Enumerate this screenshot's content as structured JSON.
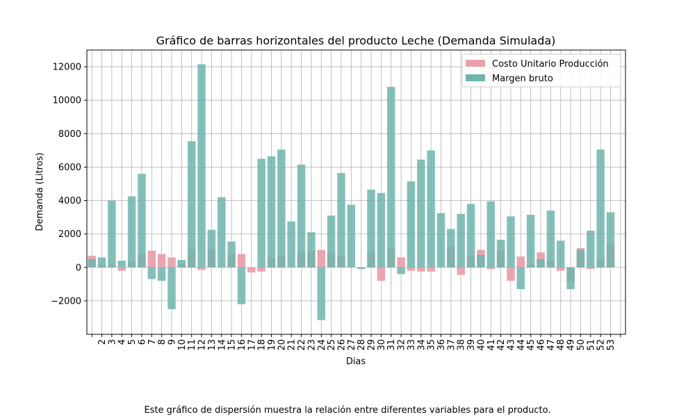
{
  "caption": "Este gráfico de dispersión muestra la relación entre diferentes variables para el producto.",
  "chart_data": {
    "type": "bar",
    "title": "Gráfico de barras horizontales del producto Leche (Demanda Simulada)",
    "xlabel": "Dias",
    "ylabel": "Demanda (Litros)",
    "ylim": [
      -4000,
      13000
    ],
    "yticks": [
      -2000,
      0,
      2000,
      4000,
      6000,
      8000,
      10000,
      12000
    ],
    "ytick_labels": [
      "−2000",
      "0",
      "2000",
      "4000",
      "6000",
      "8000",
      "10000",
      "12000"
    ],
    "grid": true,
    "legend_position": "top-right",
    "categories": [
      "",
      "2",
      "3",
      "4",
      "5",
      "6",
      "7",
      "8",
      "9",
      "10",
      "11",
      "12",
      "13",
      "14",
      "15",
      "16",
      "17",
      "18",
      "19",
      "20",
      "21",
      "22",
      "23",
      "24",
      "25",
      "26",
      "27",
      "28",
      "29",
      "30",
      "31",
      "32",
      "33",
      "34",
      "35",
      "36",
      "37",
      "38",
      "39",
      "40",
      "41",
      "42",
      "43",
      "44",
      "45",
      "46",
      "47",
      "48",
      "49",
      "50",
      "51",
      "52",
      "53",
      ""
    ],
    "series": [
      {
        "name": "Costo Unitario Producción",
        "color": "#e8a1ac",
        "values": [
          700,
          150,
          150,
          -200,
          350,
          800,
          1000,
          800,
          600,
          200,
          1100,
          -150,
          1100,
          0,
          800,
          800,
          -300,
          -250,
          550,
          650,
          0,
          950,
          1000,
          1050,
          900,
          700,
          0,
          0,
          900,
          -800,
          1150,
          600,
          -200,
          -250,
          -250,
          0,
          1250,
          -450,
          700,
          1050,
          -100,
          1000,
          -800,
          650,
          150,
          900,
          400,
          -200,
          -850,
          1150,
          -100,
          550,
          1400,
          0
        ]
      },
      {
        "name": "Margen bruto",
        "color": "#6fb5ad",
        "values": [
          500,
          600,
          4000,
          400,
          4250,
          5600,
          -700,
          -800,
          -2500,
          450,
          7550,
          12150,
          2250,
          4200,
          1550,
          -2200,
          0,
          6500,
          6650,
          7050,
          2750,
          6150,
          2100,
          -3150,
          3100,
          5650,
          3750,
          -100,
          4650,
          4450,
          10800,
          -400,
          5150,
          6450,
          7000,
          3250,
          2300,
          3200,
          3800,
          750,
          3950,
          1650,
          3050,
          -1300,
          3150,
          500,
          3400,
          1600,
          -1300,
          1050,
          2200,
          7050,
          3300,
          0
        ]
      }
    ]
  }
}
